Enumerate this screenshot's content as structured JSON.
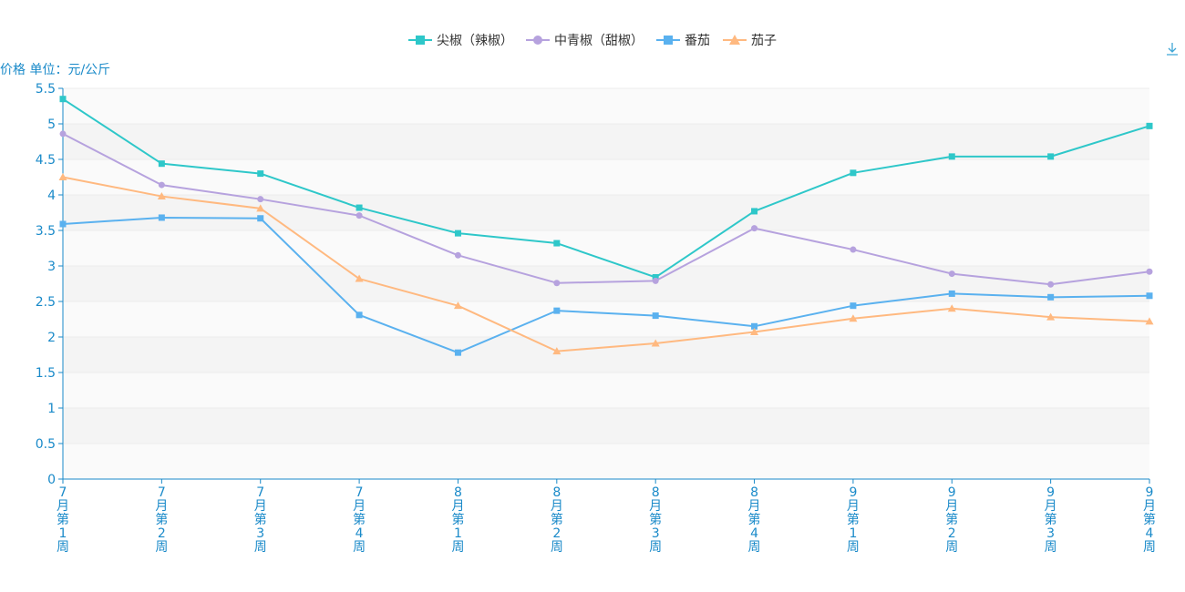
{
  "chart_data": {
    "type": "line",
    "ylabel": "价格 单位：元/公斤",
    "ylim": [
      0,
      5.5
    ],
    "yticks": [
      "0",
      "0.5",
      "1",
      "1.5",
      "2",
      "2.5",
      "3",
      "3.5",
      "4",
      "4.5",
      "5",
      "5.5"
    ],
    "categories": [
      "7月第1周",
      "7月第2周",
      "7月第3周",
      "7月第4周",
      "8月第1周",
      "8月第2周",
      "8月第3周",
      "8月第4周",
      "9月第1周",
      "9月第2周",
      "9月第3周",
      "9月第4周"
    ],
    "legend_position": "top-center",
    "series": [
      {
        "name": "尖椒（辣椒）",
        "color": "#2ec7c9",
        "marker": "square",
        "values": [
          5.35,
          4.44,
          4.3,
          3.82,
          3.46,
          3.32,
          2.84,
          3.77,
          4.31,
          4.54,
          4.54,
          4.97
        ]
      },
      {
        "name": "中青椒（甜椒）",
        "color": "#b6a2de",
        "marker": "circle",
        "values": [
          4.86,
          4.14,
          3.94,
          3.71,
          3.15,
          2.76,
          2.79,
          3.53,
          3.23,
          2.89,
          2.74,
          2.92
        ]
      },
      {
        "name": "番茄",
        "color": "#5ab1ef",
        "marker": "square",
        "values": [
          3.59,
          3.68,
          3.67,
          2.31,
          1.78,
          2.37,
          2.3,
          2.15,
          2.44,
          2.61,
          2.56,
          2.58
        ]
      },
      {
        "name": "茄子",
        "color": "#ffb980",
        "marker": "triangle",
        "values": [
          4.25,
          3.98,
          3.81,
          2.82,
          2.44,
          1.8,
          1.91,
          2.07,
          2.26,
          2.4,
          2.28,
          2.22
        ]
      }
    ]
  },
  "toolbar": {
    "download_icon": "download-icon"
  }
}
